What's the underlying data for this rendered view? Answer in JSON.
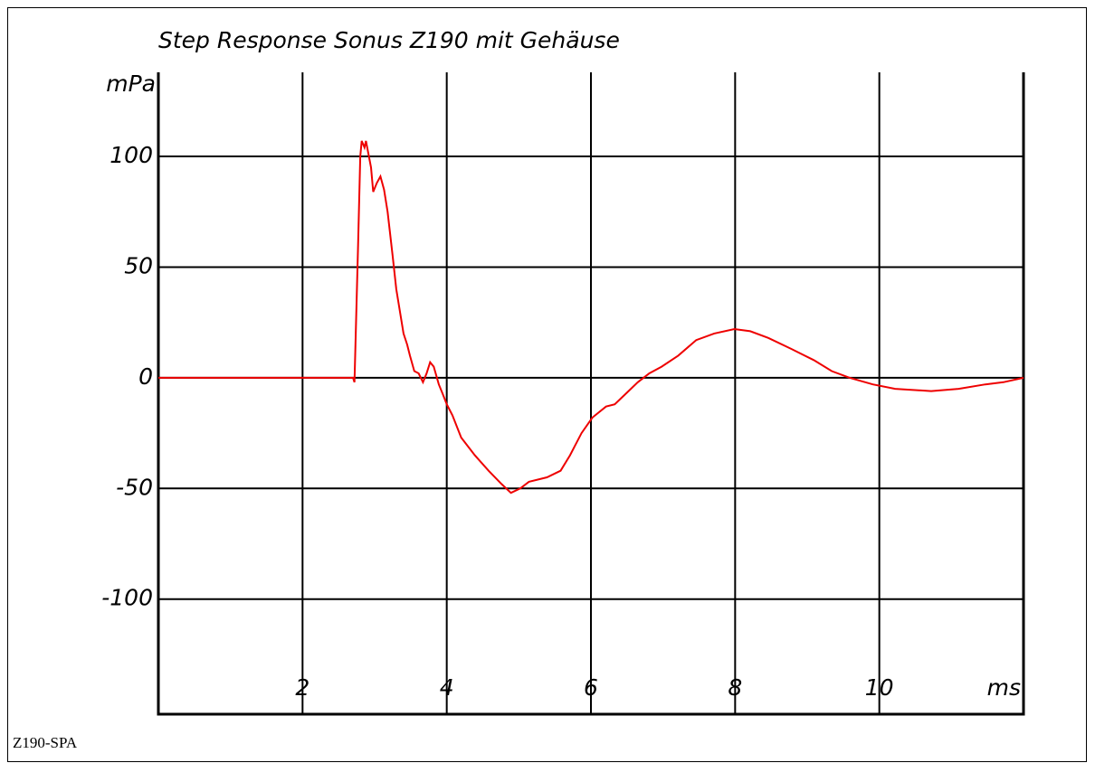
{
  "chart_data": {
    "type": "line",
    "title": "Step Response Sonus Z190 mit Gehäuse",
    "y_label": "mPa",
    "x_label": "ms",
    "footer": "Z190-SPA",
    "xlim": [
      0,
      12
    ],
    "ylim": [
      -152,
      138
    ],
    "xticks": [
      2,
      4,
      6,
      8,
      10
    ],
    "yticks": [
      100,
      50,
      0,
      -50,
      -100
    ],
    "grid": true,
    "x": [
      0,
      1.4,
      2.7,
      2.72,
      2.77,
      2.8,
      2.82,
      2.86,
      2.88,
      2.95,
      2.98,
      3.03,
      3.08,
      3.13,
      3.18,
      3.25,
      3.3,
      3.35,
      3.4,
      3.45,
      3.49,
      3.55,
      3.61,
      3.67,
      3.72,
      3.77,
      3.82,
      3.89,
      3.94,
      4.0,
      4.08,
      4.2,
      4.39,
      4.58,
      4.76,
      4.89,
      5.02,
      5.14,
      5.39,
      5.58,
      5.71,
      5.87,
      6.02,
      6.21,
      6.33,
      6.46,
      6.65,
      6.81,
      6.98,
      7.21,
      7.46,
      7.71,
      7.99,
      8.21,
      8.46,
      8.78,
      9.09,
      9.34,
      9.59,
      9.91,
      10.22,
      10.72,
      11.1,
      11.47,
      11.72,
      12
    ],
    "series": [
      {
        "name": "Step Response",
        "color": "#ee0000",
        "values": [
          0,
          0,
          0,
          -2,
          60,
          100,
          107,
          104,
          107,
          95,
          84,
          88,
          91,
          85,
          75,
          55,
          40,
          30,
          20,
          15,
          10,
          3,
          2,
          -2,
          2,
          7,
          5,
          -3,
          -7,
          -12,
          -17,
          -27,
          -35,
          -42,
          -48,
          -52,
          -50,
          -47,
          -45,
          -42,
          -35,
          -25,
          -18,
          -13,
          -12,
          -8,
          -2,
          2,
          5,
          10,
          17,
          20,
          22,
          21,
          18,
          13,
          8,
          3,
          0,
          -3,
          -5,
          -6,
          -5,
          -3,
          -2,
          0
        ]
      }
    ]
  }
}
